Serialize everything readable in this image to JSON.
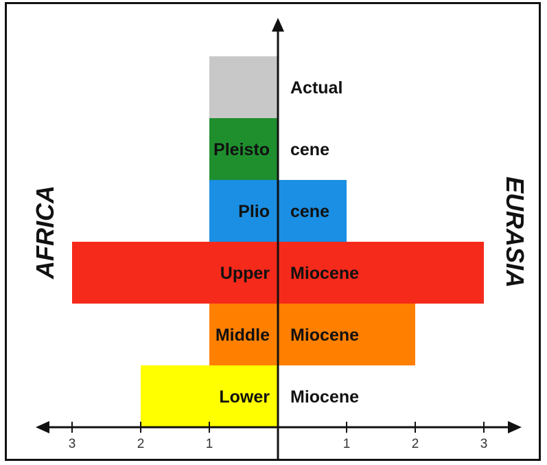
{
  "chart_data": {
    "type": "bar",
    "orientation": "horizontal-diverging",
    "side_labels": {
      "left": "AFRICA",
      "right": "EURASIA"
    },
    "x_ticks": [
      {
        "value": -3,
        "label": "3"
      },
      {
        "value": -2,
        "label": "2"
      },
      {
        "value": -1,
        "label": "1"
      },
      {
        "value": 1,
        "label": "1"
      },
      {
        "value": 2,
        "label": "2"
      },
      {
        "value": 3,
        "label": "3"
      }
    ],
    "xlim": [
      -3,
      3
    ],
    "rows": [
      {
        "left_text": "Lower",
        "right_text": "Miocene",
        "africa": 2,
        "eurasia": 0,
        "color": "#ffff00"
      },
      {
        "left_text": "Middle",
        "right_text": "Miocene",
        "africa": 1,
        "eurasia": 2,
        "color": "#ff7f00"
      },
      {
        "left_text": "Upper",
        "right_text": "Miocene",
        "africa": 3,
        "eurasia": 3,
        "color": "#f62a1b"
      },
      {
        "left_text": "Plio",
        "right_text": "cene",
        "africa": 1,
        "eurasia": 1,
        "color": "#1a8fe3"
      },
      {
        "left_text": "Pleisto",
        "right_text": "cene",
        "africa": 1,
        "eurasia": 0,
        "color": "#1f8f2e"
      },
      {
        "left_text": "",
        "right_text": "Actual",
        "africa": 1,
        "eurasia": 0,
        "color": "#c8c8c8"
      }
    ],
    "grid": false,
    "legend": "none"
  }
}
